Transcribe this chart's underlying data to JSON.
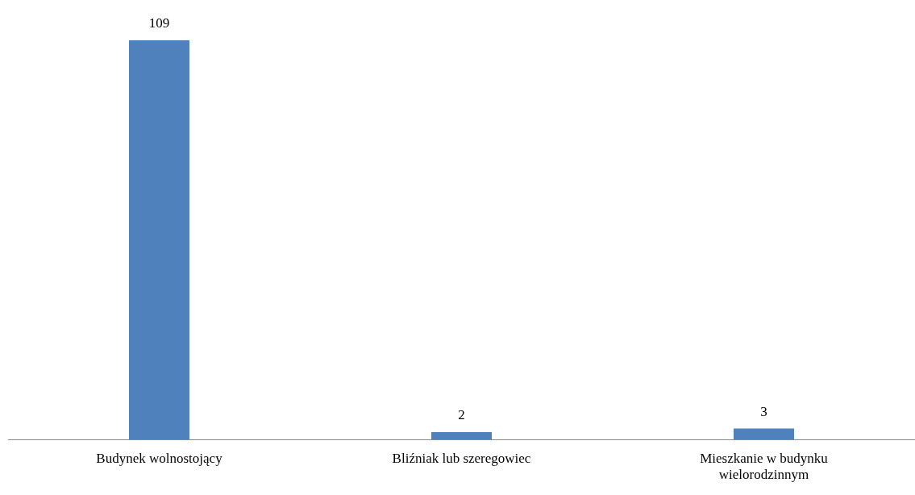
{
  "chart_data": {
    "type": "bar",
    "categories": [
      "Budynek wolnostojący",
      "Bliźniak lub szeregowiec",
      "Mieszkanie w budynku wielorodzinnym"
    ],
    "values": [
      109,
      2,
      3
    ],
    "color": "#4f81bd",
    "data_labels": true,
    "tick_labels": "x",
    "grid": false,
    "legend": false
  }
}
